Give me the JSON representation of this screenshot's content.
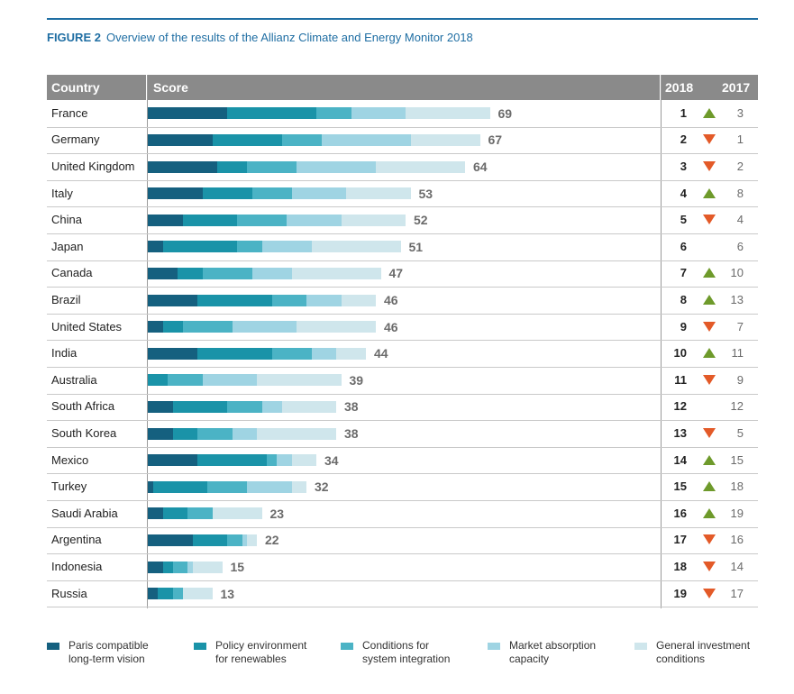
{
  "figure": {
    "number": "FIGURE 2",
    "title": "Overview of the results of the Allianz Climate and Energy Monitor 2018"
  },
  "header": {
    "country": "Country",
    "score": "Score",
    "year_2018": "2018",
    "year_2017": "2017"
  },
  "colors": {
    "paris": "#15607f",
    "policy": "#1a93a8",
    "conditions": "#4bb3c5",
    "market": "#9fd4e3",
    "investment": "#cfe6ec",
    "up": "#6e9a2b",
    "down": "#e35a28"
  },
  "chart_data": {
    "type": "bar",
    "stacked": true,
    "orientation": "horizontal",
    "title": "Overview of the results of the Allianz Climate and Energy Monitor 2018",
    "xlim": [
      0,
      100
    ],
    "categories": [
      "France",
      "Germany",
      "United Kingdom",
      "Italy",
      "China",
      "Japan",
      "Canada",
      "Brazil",
      "United States",
      "India",
      "Australia",
      "South Africa",
      "South Korea",
      "Mexico",
      "Turkey",
      "Saudi Arabia",
      "Argentina",
      "Indonesia",
      "Russia"
    ],
    "totals": [
      69,
      67,
      64,
      53,
      52,
      51,
      47,
      46,
      46,
      44,
      39,
      38,
      38,
      34,
      32,
      23,
      22,
      15,
      13
    ],
    "series": [
      {
        "name": "Paris compatible long-term vision",
        "values": [
          16,
          13,
          14,
          11,
          7,
          3,
          6,
          10,
          3,
          10,
          0,
          5,
          5,
          10,
          1,
          3,
          9,
          3,
          2
        ]
      },
      {
        "name": "Policy environment for renewables",
        "values": [
          18,
          14,
          6,
          10,
          11,
          15,
          5,
          15,
          4,
          15,
          4,
          11,
          5,
          14,
          11,
          5,
          7,
          2,
          3
        ]
      },
      {
        "name": "Conditions for system integration",
        "values": [
          7,
          8,
          10,
          8,
          10,
          5,
          10,
          7,
          10,
          8,
          7,
          7,
          7,
          2,
          8,
          5,
          3,
          3,
          2
        ]
      },
      {
        "name": "Market absorption capacity",
        "values": [
          11,
          18,
          16,
          11,
          11,
          10,
          8,
          7,
          13,
          5,
          11,
          4,
          5,
          3,
          9,
          0,
          1,
          1,
          0
        ]
      },
      {
        "name": "General investment conditions",
        "values": [
          17,
          14,
          18,
          13,
          13,
          18,
          18,
          7,
          16,
          6,
          17,
          11,
          16,
          5,
          3,
          10,
          2,
          6,
          6
        ]
      }
    ],
    "rank_2018": [
      "1",
      "2",
      "3",
      "4",
      "5",
      "6",
      "7",
      "8",
      "9",
      "10",
      "11",
      "12",
      "13",
      "14",
      "15",
      "16",
      "17",
      "18",
      "19"
    ],
    "rank_2017": [
      "3",
      "1",
      "2",
      "8",
      "4",
      "6",
      "10",
      "13",
      "7",
      "11",
      "9",
      "12",
      "5",
      "15",
      "18",
      "19",
      "16",
      "14",
      "17"
    ],
    "trend": [
      "up",
      "down",
      "down",
      "up",
      "down",
      "none",
      "up",
      "up",
      "down",
      "up",
      "down",
      "none",
      "down",
      "up",
      "up",
      "up",
      "down",
      "down",
      "down"
    ]
  },
  "legend": [
    {
      "line1": "Paris compatible",
      "line2": "long-term vision"
    },
    {
      "line1": "Policy environment",
      "line2": "for renewables"
    },
    {
      "line1": "Conditions for",
      "line2": "system integration"
    },
    {
      "line1": "Market absorption",
      "line2": "capacity"
    },
    {
      "line1": "General investment",
      "line2": "conditions"
    }
  ]
}
